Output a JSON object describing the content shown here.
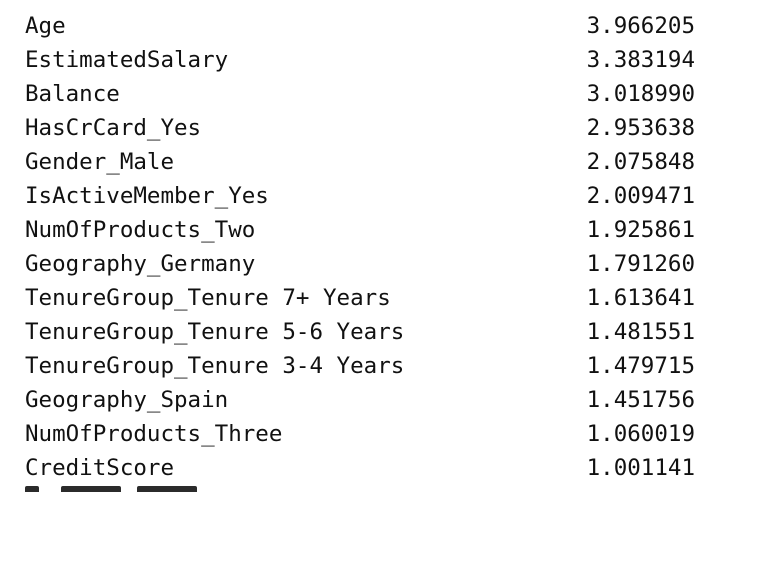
{
  "output": {
    "rows": [
      {
        "name": "Age",
        "value": "3.966205"
      },
      {
        "name": "EstimatedSalary",
        "value": "3.383194"
      },
      {
        "name": "Balance",
        "value": "3.018990"
      },
      {
        "name": "HasCrCard_Yes",
        "value": "2.953638"
      },
      {
        "name": "Gender_Male",
        "value": "2.075848"
      },
      {
        "name": "IsActiveMember_Yes",
        "value": "2.009471"
      },
      {
        "name": "NumOfProducts_Two",
        "value": "1.925861"
      },
      {
        "name": "Geography_Germany",
        "value": "1.791260"
      },
      {
        "name": "TenureGroup_Tenure 7+ Years",
        "value": "1.613641"
      },
      {
        "name": "TenureGroup_Tenure 5-6 Years",
        "value": "1.481551"
      },
      {
        "name": "TenureGroup_Tenure 3-4 Years",
        "value": "1.479715"
      },
      {
        "name": "Geography_Spain",
        "value": "1.451756"
      },
      {
        "name": "NumOfProducts_Three",
        "value": "1.060019"
      },
      {
        "name": "CreditScore",
        "value": "1.001141"
      }
    ]
  }
}
